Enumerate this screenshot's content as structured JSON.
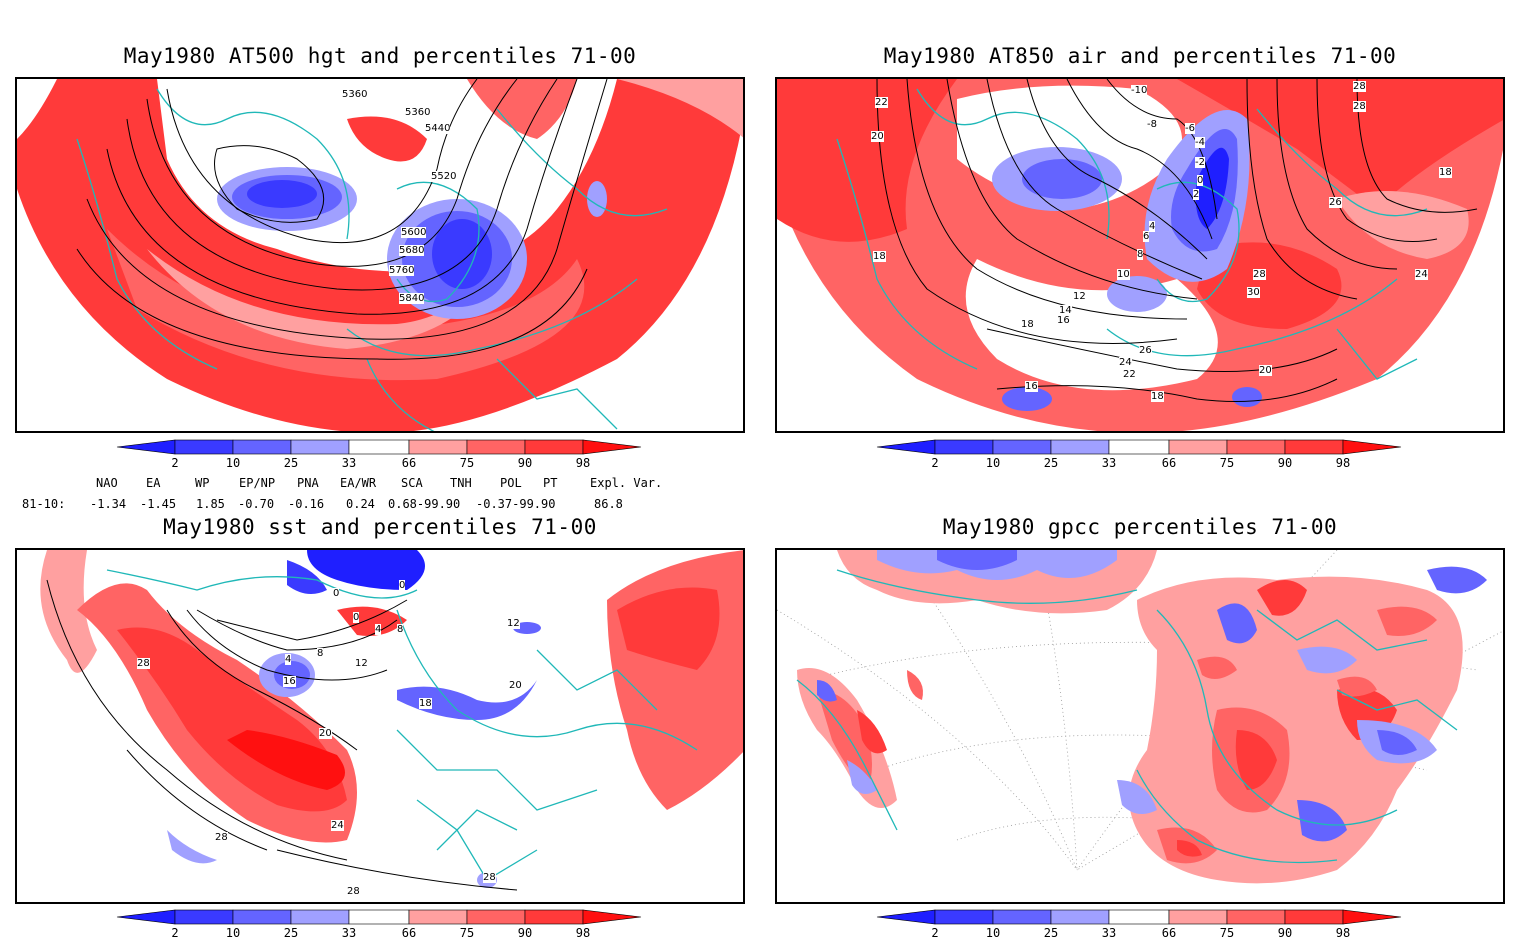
{
  "panels": [
    {
      "id": "hgt",
      "title": "May1980 AT500 hgt and percentiles 71-00",
      "contour_labels": [
        "5360",
        "5360",
        "5440",
        "5520",
        "5600",
        "5680",
        "5760",
        "5840"
      ]
    },
    {
      "id": "air",
      "title": "May1980 AT850 air and percentiles 71-00",
      "contour_labels": [
        "-10",
        "-8",
        "-6",
        "-4",
        "-2",
        "0",
        "2",
        "4",
        "6",
        "8",
        "10",
        "12",
        "14",
        "16",
        "18",
        "18",
        "18",
        "20",
        "22",
        "24",
        "26",
        "28",
        "28",
        "30",
        "16",
        "18",
        "20",
        "22",
        "24",
        "26",
        "28"
      ]
    },
    {
      "id": "sst",
      "title": "May1980 sst and percentiles 71-00",
      "contour_labels": [
        "0",
        "0",
        "0",
        "4",
        "4",
        "8",
        "8",
        "12",
        "12",
        "16",
        "18",
        "20",
        "20",
        "24",
        "28",
        "28",
        "28",
        "28"
      ]
    },
    {
      "id": "gpcc",
      "title": "May1980 gpcc percentiles 71-00",
      "contour_labels": []
    }
  ],
  "colorbar": {
    "ticks": [
      "2",
      "10",
      "25",
      "33",
      "66",
      "75",
      "90",
      "98"
    ],
    "colors": {
      "lt2": "#1f1fff",
      "b2_10": "#3a3aff",
      "b10_25": "#6464ff",
      "b25_33": "#a0a0ff",
      "b33_66": "#ffffff",
      "r66_75": "#ffa0a0",
      "r75_90": "#ff6464",
      "r90_98": "#ff3a3a",
      "gt98": "#ff1010"
    }
  },
  "teleconnections": {
    "headers": [
      "NAO",
      "EA",
      "WP",
      "EP/NP",
      "PNA",
      "EA/WR",
      "SCA",
      "TNH",
      "POL",
      "PT",
      "Expl. Var."
    ],
    "row_label": "81-10:",
    "values": [
      "-1.34",
      "-1.45",
      "1.85",
      "-0.70",
      "-0.16",
      "0.24",
      "0.68-99.90",
      "-0.37-99.90",
      "86.8"
    ]
  },
  "map_colors": {
    "coast": "#20b8b8",
    "grid": "#999999",
    "contour": "#000000"
  }
}
